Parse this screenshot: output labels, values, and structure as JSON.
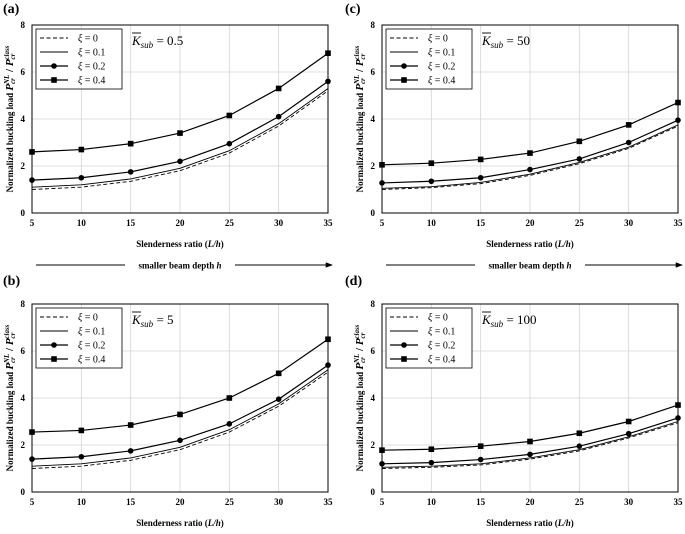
{
  "figure": {
    "xlabel": "Slenderness ratio (L/h)",
    "xlabel_parts": [
      "Slenderness ratio (",
      "L/h",
      ")"
    ],
    "ylabel_text": "Normalized buckling load",
    "ylabel_formula": "P",
    "ylabel_formula_parts": [
      "P",
      "cr",
      "NL",
      " / ",
      "P",
      "cr",
      "class"
    ],
    "arrow_caption": "smaller beam depth h",
    "arrow_caption_parts": [
      "smaller beam depth ",
      "h"
    ],
    "legend_symbol": "ξ",
    "ksub_parts": [
      "K",
      "sub"
    ]
  },
  "chart_data": [
    {
      "panel": "(a)",
      "type": "line",
      "title": "K̄sub = 0.5",
      "ksub_value": "= 0.5",
      "xlabel": "Slenderness ratio (L/h)",
      "ylabel": "Normalized buckling load Pcr^NL / Pcr^class",
      "x": [
        5,
        10,
        15,
        20,
        25,
        30,
        35
      ],
      "xticks": [
        "5",
        "10",
        "15",
        "20",
        "25",
        "30",
        "35"
      ],
      "yticks": [
        "0",
        "2",
        "4",
        "6",
        "8"
      ],
      "xlim": [
        5,
        35
      ],
      "ylim": [
        0,
        8
      ],
      "grid": true,
      "legend": "top-left",
      "series": [
        {
          "name": "ξ = 0",
          "label": "= 0",
          "style": "dashed",
          "marker": "none",
          "values": [
            1.0,
            1.1,
            1.35,
            1.8,
            2.55,
            3.7,
            5.2
          ]
        },
        {
          "name": "ξ = 0.1",
          "label": "= 0.1",
          "style": "solid",
          "marker": "none",
          "values": [
            1.1,
            1.2,
            1.45,
            1.9,
            2.65,
            3.8,
            5.3
          ]
        },
        {
          "name": "ξ = 0.2",
          "label": "= 0.2",
          "style": "solid",
          "marker": "circle",
          "values": [
            1.4,
            1.5,
            1.75,
            2.2,
            2.95,
            4.1,
            5.6
          ]
        },
        {
          "name": "ξ = 0.4",
          "label": "= 0.4",
          "style": "solid",
          "marker": "square",
          "values": [
            2.6,
            2.7,
            2.95,
            3.4,
            4.15,
            5.3,
            6.8
          ]
        }
      ]
    },
    {
      "panel": "(c)",
      "type": "line",
      "title": "K̄sub = 50",
      "ksub_value": "= 50",
      "xlabel": "Slenderness ratio (L/h)",
      "ylabel": "Normalized buckling load Pcr^NL / Pcr^class",
      "x": [
        5,
        10,
        15,
        20,
        25,
        30,
        35
      ],
      "xticks": [
        "5",
        "10",
        "15",
        "20",
        "25",
        "30",
        "35"
      ],
      "yticks": [
        "0",
        "2",
        "4",
        "6",
        "8"
      ],
      "xlim": [
        5,
        35
      ],
      "ylim": [
        0,
        8
      ],
      "grid": true,
      "legend": "top-left",
      "series": [
        {
          "name": "ξ = 0",
          "label": "= 0",
          "style": "dashed",
          "marker": "none",
          "values": [
            1.0,
            1.08,
            1.25,
            1.6,
            2.1,
            2.75,
            3.7
          ]
        },
        {
          "name": "ξ = 0.1",
          "label": "= 0.1",
          "style": "solid",
          "marker": "none",
          "values": [
            1.05,
            1.12,
            1.3,
            1.65,
            2.15,
            2.8,
            3.75
          ]
        },
        {
          "name": "ξ = 0.2",
          "label": "= 0.2",
          "style": "solid",
          "marker": "circle",
          "values": [
            1.28,
            1.35,
            1.5,
            1.85,
            2.3,
            3.0,
            3.95
          ]
        },
        {
          "name": "ξ = 0.4",
          "label": "= 0.4",
          "style": "solid",
          "marker": "square",
          "values": [
            2.05,
            2.12,
            2.28,
            2.55,
            3.05,
            3.75,
            4.7
          ]
        }
      ]
    },
    {
      "panel": "(b)",
      "type": "line",
      "title": "K̄sub = 5",
      "ksub_value": "= 5",
      "xlabel": "Slenderness ratio (L/h)",
      "ylabel": "Normalized buckling load Pcr^NL / Pcr^class",
      "x": [
        5,
        10,
        15,
        20,
        25,
        30,
        35
      ],
      "xticks": [
        "5",
        "10",
        "15",
        "20",
        "25",
        "30",
        "35"
      ],
      "yticks": [
        "0",
        "2",
        "4",
        "6",
        "8"
      ],
      "xlim": [
        5,
        35
      ],
      "ylim": [
        0,
        8
      ],
      "grid": true,
      "legend": "top-left",
      "series": [
        {
          "name": "ξ = 0",
          "label": "= 0",
          "style": "dashed",
          "marker": "none",
          "values": [
            1.0,
            1.1,
            1.35,
            1.8,
            2.55,
            3.65,
            5.1
          ]
        },
        {
          "name": "ξ = 0.1",
          "label": "= 0.1",
          "style": "solid",
          "marker": "none",
          "values": [
            1.1,
            1.2,
            1.45,
            1.9,
            2.65,
            3.75,
            5.2
          ]
        },
        {
          "name": "ξ = 0.2",
          "label": "= 0.2",
          "style": "solid",
          "marker": "circle",
          "values": [
            1.4,
            1.5,
            1.75,
            2.2,
            2.9,
            3.95,
            5.4
          ]
        },
        {
          "name": "ξ = 0.4",
          "label": "= 0.4",
          "style": "solid",
          "marker": "square",
          "values": [
            2.55,
            2.62,
            2.85,
            3.3,
            4.0,
            5.05,
            6.5
          ]
        }
      ]
    },
    {
      "panel": "(d)",
      "type": "line",
      "title": "K̄sub = 100",
      "ksub_value": "= 100",
      "xlabel": "Slenderness ratio (L/h)",
      "ylabel": "Normalized buckling load Pcr^NL / Pcr^class",
      "x": [
        5,
        10,
        15,
        20,
        25,
        30,
        35
      ],
      "xticks": [
        "5",
        "10",
        "15",
        "20",
        "25",
        "30",
        "35"
      ],
      "yticks": [
        "0",
        "2",
        "4",
        "6",
        "8"
      ],
      "xlim": [
        5,
        35
      ],
      "ylim": [
        0,
        8
      ],
      "grid": true,
      "legend": "top-left",
      "series": [
        {
          "name": "ξ = 0",
          "label": "= 0",
          "style": "dashed",
          "marker": "none",
          "values": [
            1.0,
            1.05,
            1.15,
            1.4,
            1.75,
            2.3,
            2.95
          ]
        },
        {
          "name": "ξ = 0.1",
          "label": "= 0.1",
          "style": "solid",
          "marker": "none",
          "values": [
            1.05,
            1.1,
            1.2,
            1.45,
            1.8,
            2.35,
            3.0
          ]
        },
        {
          "name": "ξ = 0.2",
          "label": "= 0.2",
          "style": "solid",
          "marker": "circle",
          "values": [
            1.2,
            1.25,
            1.38,
            1.6,
            1.95,
            2.48,
            3.15
          ]
        },
        {
          "name": "ξ = 0.4",
          "label": "= 0.4",
          "style": "solid",
          "marker": "square",
          "values": [
            1.78,
            1.82,
            1.95,
            2.15,
            2.5,
            3.0,
            3.7
          ]
        }
      ]
    }
  ]
}
